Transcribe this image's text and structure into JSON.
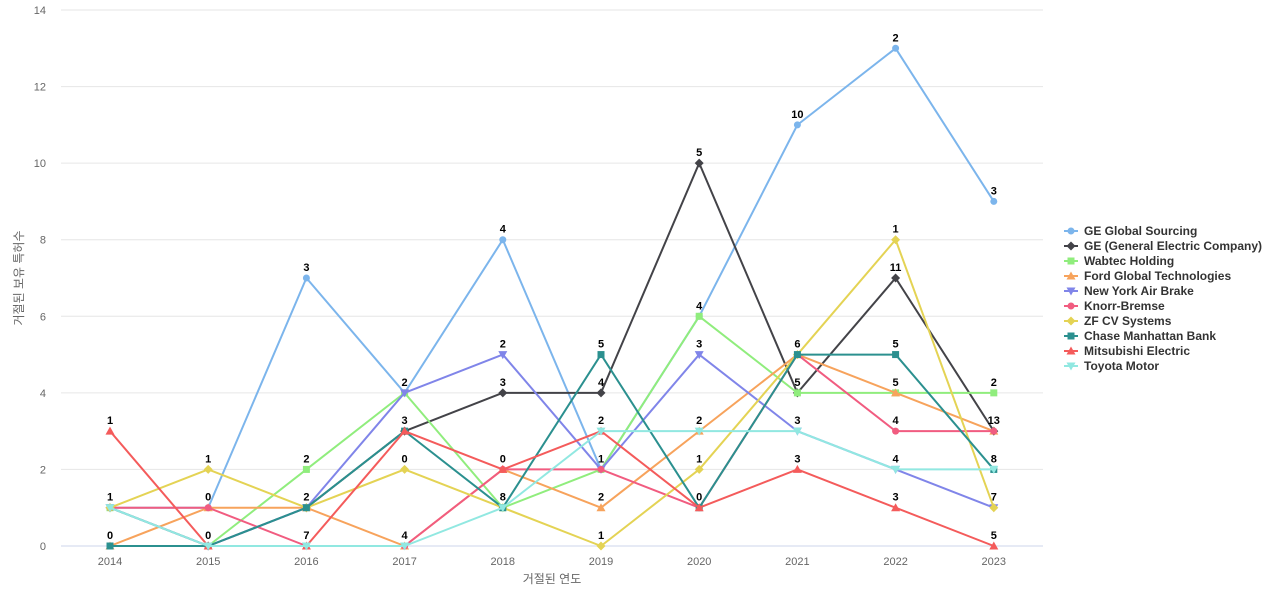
{
  "chart_data": {
    "type": "line",
    "title": "",
    "xlabel": "거절된 연도",
    "ylabel": "거절된 보유 특허수",
    "ylim": [
      0,
      14
    ],
    "yticks": [
      0,
      2,
      4,
      6,
      8,
      10,
      12,
      14
    ],
    "grid": true,
    "legend_position": "right",
    "categories": [
      "2014",
      "2015",
      "2016",
      "2017",
      "2018",
      "2019",
      "2020",
      "2021",
      "2022",
      "2023"
    ],
    "series": [
      {
        "name": "GE Global Sourcing",
        "color": "#7cb5ec",
        "marker": "circle",
        "values": [
          1,
          1,
          7,
          4,
          8,
          2,
          6,
          11,
          13,
          9
        ]
      },
      {
        "name": "GE (General Electric Company)",
        "color": "#434348",
        "marker": "diamond",
        "values": [
          1,
          0,
          1,
          3,
          4,
          4,
          10,
          4,
          7,
          3
        ]
      },
      {
        "name": "Wabtec Holding",
        "color": "#90ed7d",
        "marker": "square",
        "values": [
          1,
          0,
          2,
          4,
          1,
          2,
          6,
          4,
          4,
          4
        ]
      },
      {
        "name": "Ford Global Technologies",
        "color": "#f7a35c",
        "marker": "triangle",
        "values": [
          0,
          1,
          1,
          0,
          2,
          1,
          3,
          5,
          4,
          3
        ]
      },
      {
        "name": "New York Air Brake",
        "color": "#8085e9",
        "marker": "triangle-down",
        "values": [
          1,
          0,
          1,
          4,
          5,
          2,
          5,
          3,
          2,
          1
        ]
      },
      {
        "name": "Knorr-Bremse",
        "color": "#f15c80",
        "marker": "circle",
        "values": [
          1,
          1,
          0,
          0,
          2,
          2,
          1,
          5,
          3,
          3
        ]
      },
      {
        "name": "ZF CV Systems",
        "color": "#e4d354",
        "marker": "diamond",
        "values": [
          1,
          2,
          1,
          2,
          1,
          0,
          2,
          5,
          8,
          1
        ]
      },
      {
        "name": "Chase Manhattan Bank",
        "color": "#2b908f",
        "marker": "square",
        "values": [
          0,
          0,
          1,
          3,
          1,
          5,
          1,
          5,
          5,
          2
        ]
      },
      {
        "name": "Mitsubishi Electric",
        "color": "#f45b5b",
        "marker": "triangle",
        "values": [
          3,
          0,
          0,
          3,
          2,
          3,
          1,
          2,
          1,
          0
        ]
      },
      {
        "name": "Toyota Motor",
        "color": "#91e8e1",
        "marker": "triangle-down",
        "values": [
          1,
          0,
          0,
          0,
          1,
          3,
          3,
          3,
          2,
          2
        ]
      }
    ],
    "data_labels": {
      "values": [
        "1",
        "1",
        "0",
        "1",
        "0",
        "0",
        "3",
        "2",
        "2",
        "7",
        "2",
        "3",
        "0",
        "4",
        "4",
        "2",
        "3",
        "0",
        "8",
        "5",
        "4",
        "2",
        "1",
        "2",
        "1",
        "5",
        "4",
        "3",
        "2",
        "1",
        "0",
        "10",
        "6",
        "5",
        "3",
        "3",
        "2",
        "1",
        "11",
        "5",
        "5",
        "4",
        "4",
        "3",
        "3",
        "2",
        "13",
        "8",
        "7",
        "5",
        "4",
        "3",
        "2",
        "2",
        "1",
        "1",
        "9",
        "4",
        "3",
        "3",
        "2",
        "1",
        "0"
      ]
    }
  }
}
